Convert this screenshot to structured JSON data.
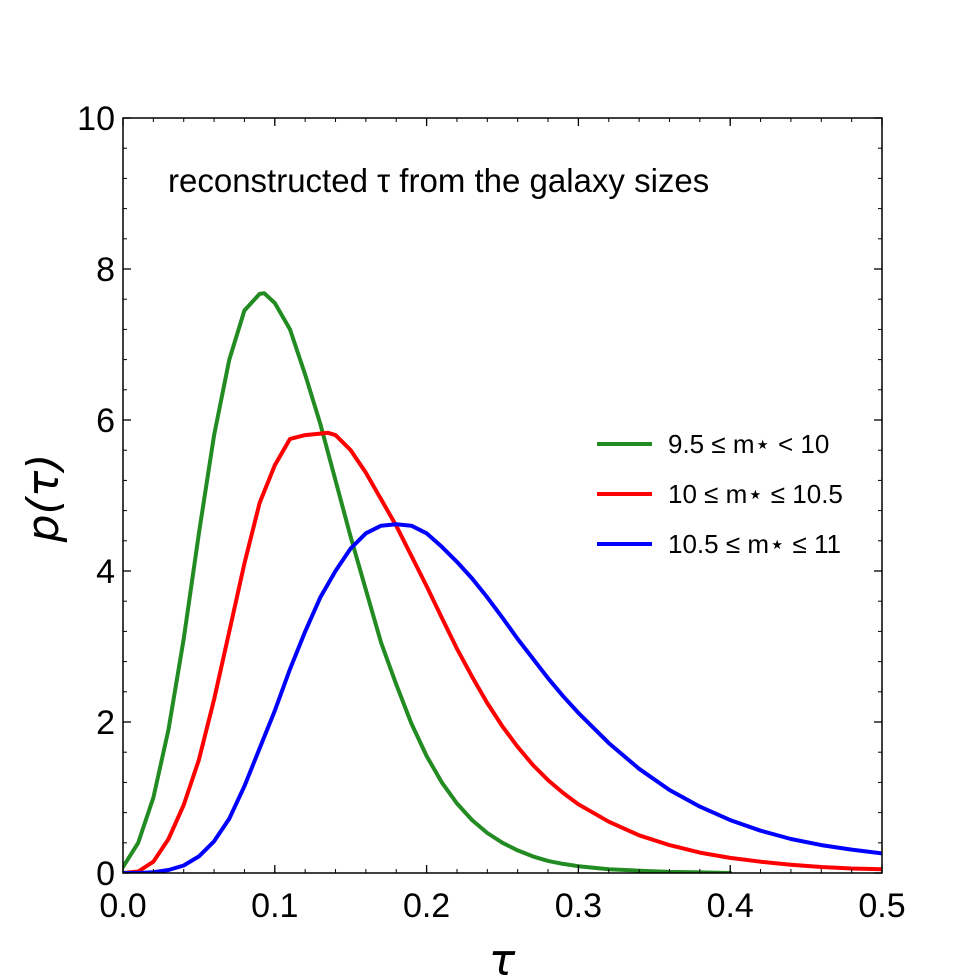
{
  "chart_data": {
    "type": "line",
    "title": "",
    "annotation": "reconstructed τ from the galaxy sizes",
    "xlabel": "τ",
    "ylabel": "p(τ)",
    "xlim": [
      0.0,
      0.5
    ],
    "ylim": [
      0,
      10
    ],
    "xticks": [
      0.0,
      0.1,
      0.2,
      0.3,
      0.4,
      0.5
    ],
    "xtick_labels": [
      "0.0",
      "0.1",
      "0.2",
      "0.3",
      "0.4",
      "0.5"
    ],
    "yticks": [
      0,
      2,
      4,
      6,
      8,
      10
    ],
    "ytick_labels": [
      "0",
      "2",
      "4",
      "6",
      "8",
      "10"
    ],
    "grid": false,
    "legend_position": "center-right",
    "series": [
      {
        "name": "9.5 ≤ m⋆ < 10",
        "color": "#228B22",
        "x": [
          0.0,
          0.01,
          0.02,
          0.03,
          0.04,
          0.05,
          0.06,
          0.07,
          0.08,
          0.09,
          0.093,
          0.1,
          0.11,
          0.12,
          0.13,
          0.14,
          0.15,
          0.16,
          0.17,
          0.18,
          0.19,
          0.2,
          0.21,
          0.22,
          0.23,
          0.24,
          0.25,
          0.26,
          0.27,
          0.28,
          0.29,
          0.3,
          0.32,
          0.34,
          0.36,
          0.38,
          0.4
        ],
        "y": [
          0.08,
          0.4,
          1.0,
          1.9,
          3.1,
          4.5,
          5.8,
          6.8,
          7.45,
          7.67,
          7.68,
          7.55,
          7.2,
          6.6,
          5.95,
          5.2,
          4.45,
          3.75,
          3.05,
          2.5,
          1.98,
          1.55,
          1.2,
          0.92,
          0.7,
          0.53,
          0.4,
          0.3,
          0.22,
          0.16,
          0.12,
          0.09,
          0.05,
          0.03,
          0.015,
          0.008,
          0.0
        ]
      },
      {
        "name": "10 ≤ m⋆ ≤ 10.5",
        "color": "#ff0000",
        "x": [
          0.0,
          0.01,
          0.02,
          0.03,
          0.04,
          0.05,
          0.06,
          0.07,
          0.08,
          0.09,
          0.1,
          0.11,
          0.12,
          0.13,
          0.135,
          0.14,
          0.15,
          0.16,
          0.17,
          0.18,
          0.19,
          0.2,
          0.21,
          0.22,
          0.23,
          0.24,
          0.25,
          0.26,
          0.27,
          0.28,
          0.29,
          0.3,
          0.32,
          0.34,
          0.36,
          0.38,
          0.4,
          0.42,
          0.44,
          0.46,
          0.48,
          0.5
        ],
        "y": [
          0.0,
          0.02,
          0.15,
          0.45,
          0.9,
          1.5,
          2.3,
          3.2,
          4.1,
          4.9,
          5.4,
          5.75,
          5.8,
          5.82,
          5.83,
          5.8,
          5.6,
          5.3,
          4.95,
          4.6,
          4.2,
          3.8,
          3.38,
          2.97,
          2.6,
          2.25,
          1.94,
          1.67,
          1.43,
          1.23,
          1.06,
          0.91,
          0.68,
          0.5,
          0.37,
          0.27,
          0.2,
          0.15,
          0.11,
          0.08,
          0.06,
          0.05
        ]
      },
      {
        "name": "10.5 ≤ m⋆ ≤ 11",
        "color": "#0000ff",
        "x": [
          0.0,
          0.01,
          0.02,
          0.03,
          0.04,
          0.05,
          0.06,
          0.07,
          0.08,
          0.09,
          0.1,
          0.11,
          0.12,
          0.13,
          0.14,
          0.15,
          0.16,
          0.17,
          0.18,
          0.19,
          0.2,
          0.21,
          0.22,
          0.23,
          0.24,
          0.25,
          0.26,
          0.27,
          0.28,
          0.29,
          0.3,
          0.32,
          0.34,
          0.36,
          0.38,
          0.4,
          0.42,
          0.44,
          0.46,
          0.48,
          0.5
        ],
        "y": [
          0.0,
          0.0,
          0.01,
          0.04,
          0.1,
          0.22,
          0.42,
          0.72,
          1.15,
          1.65,
          2.15,
          2.7,
          3.2,
          3.65,
          4.0,
          4.3,
          4.5,
          4.6,
          4.62,
          4.6,
          4.5,
          4.32,
          4.12,
          3.9,
          3.65,
          3.38,
          3.1,
          2.84,
          2.58,
          2.34,
          2.12,
          1.72,
          1.38,
          1.1,
          0.88,
          0.7,
          0.56,
          0.45,
          0.37,
          0.31,
          0.26
        ]
      }
    ]
  }
}
